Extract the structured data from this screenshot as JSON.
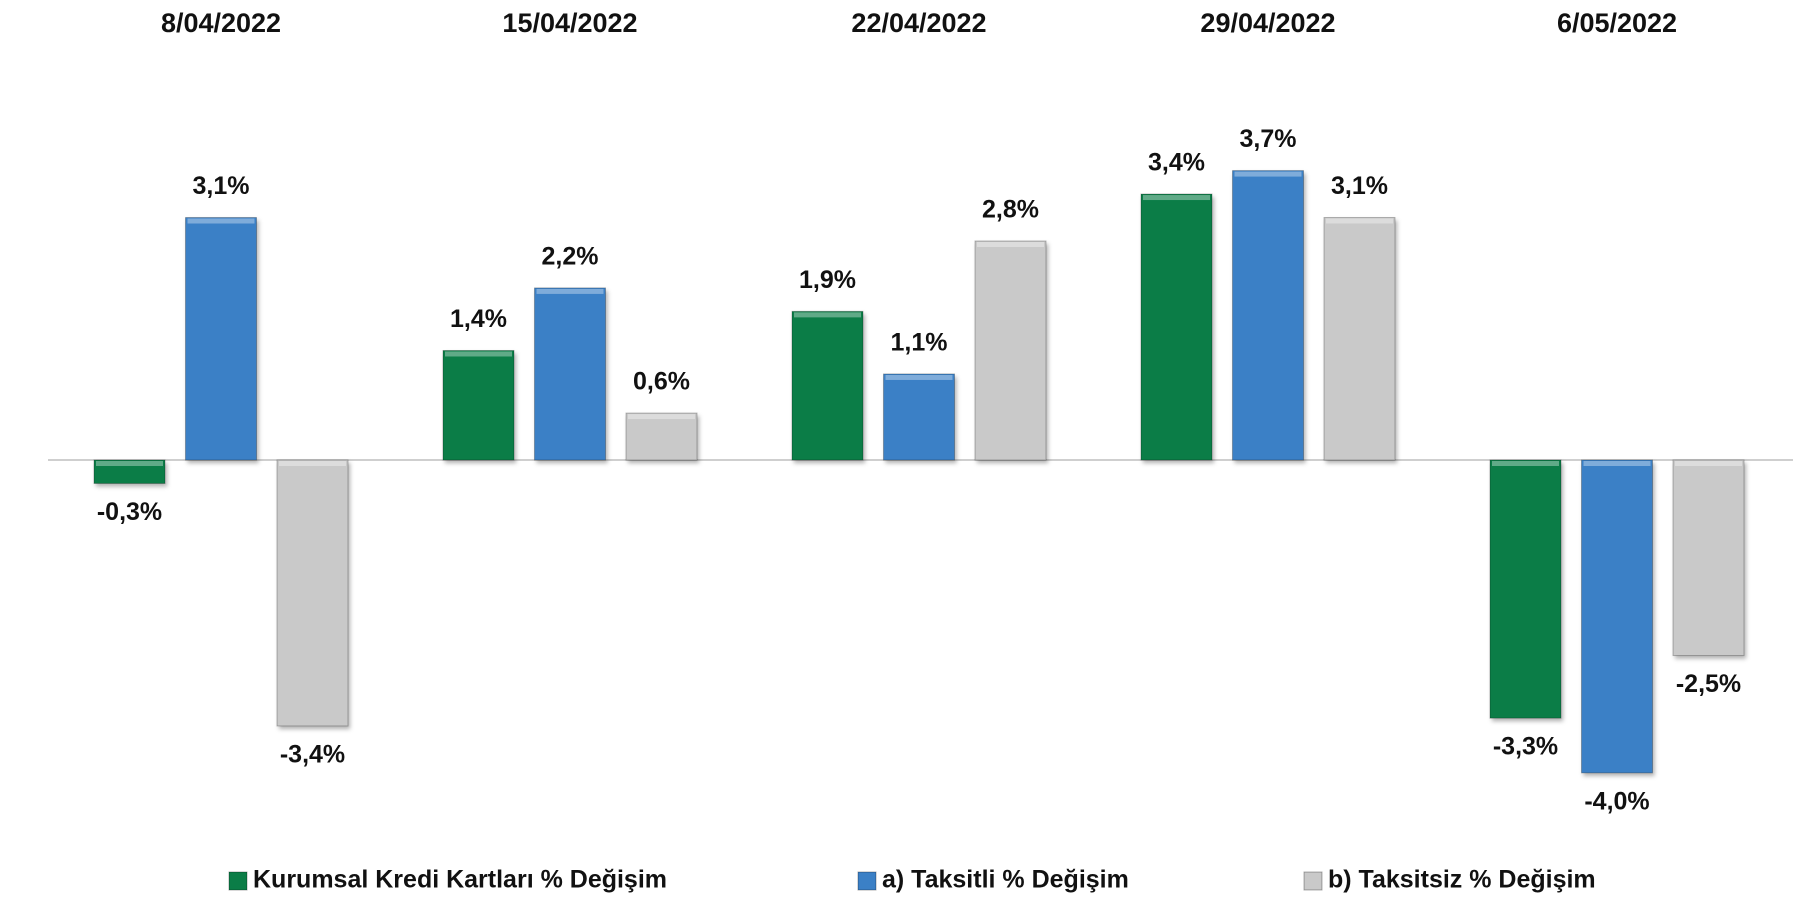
{
  "chart_data": {
    "type": "bar",
    "categories": [
      "8/04/2022",
      "15/04/2022",
      "22/04/2022",
      "29/04/2022",
      "6/05/2022"
    ],
    "series": [
      {
        "name": "Kurumsal Kredi Kartları % Değişim",
        "color": "#0b7d47",
        "values": [
          -0.3,
          1.4,
          1.9,
          3.4,
          -3.3
        ],
        "value_labels": [
          "-0,3%",
          "1,4%",
          "1,9%",
          "3,4%",
          "-3,3%"
        ]
      },
      {
        "name": "a) Taksitli % Değişim",
        "color": "#3b80c6",
        "values": [
          3.1,
          2.2,
          1.1,
          3.7,
          -4.0
        ],
        "value_labels": [
          "3,1%",
          "2,2%",
          "1,1%",
          "3,7%",
          "-4,0%"
        ]
      },
      {
        "name": "b) Taksitsiz % Değişim",
        "color": "#c9c9c9",
        "values": [
          -3.4,
          0.6,
          2.8,
          3.1,
          -2.5
        ],
        "value_labels": [
          "-3,4%",
          "0,6%",
          "2,8%",
          "3,1%",
          "-2,5%"
        ]
      }
    ],
    "ylim": [
      -4.5,
      4.5
    ],
    "legend": "bottom"
  }
}
